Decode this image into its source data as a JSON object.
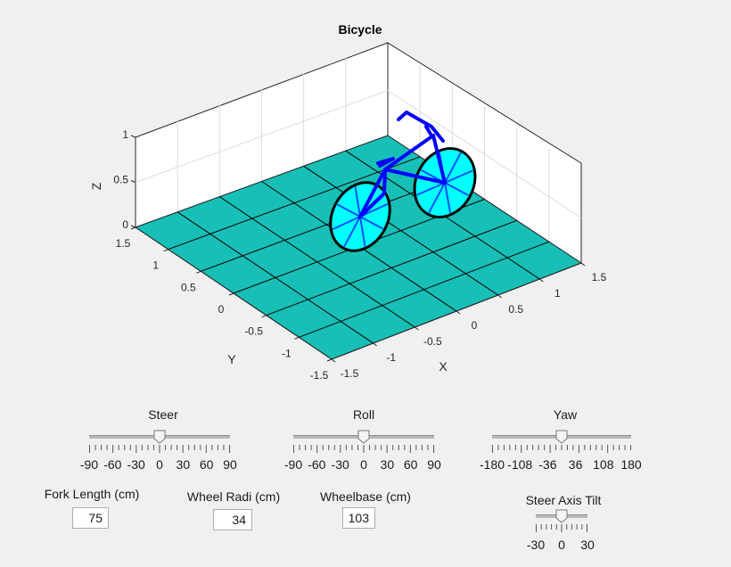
{
  "plot": {
    "title": "Bicycle",
    "xlabel": "X",
    "ylabel": "Y",
    "zlabel": "Z",
    "x_ticks": [
      "-1.5",
      "-1",
      "-0.5",
      "0",
      "0.5",
      "1",
      "1.5"
    ],
    "y_ticks": [
      "-1.5",
      "-1",
      "-0.5",
      "0",
      "0.5",
      "1",
      "1.5"
    ],
    "z_ticks": [
      "0",
      "0.5",
      "1"
    ],
    "ground_color": "#17bfb6",
    "frame_color": "#0000ff",
    "wheel_color": "#00ffff"
  },
  "controls": {
    "steer": {
      "label": "Steer",
      "min": -90,
      "max": 90,
      "value": 0,
      "tick_labels": [
        "-90",
        "-60",
        "-30",
        "0",
        "30",
        "60",
        "90"
      ]
    },
    "roll": {
      "label": "Roll",
      "min": -90,
      "max": 90,
      "value": 0,
      "tick_labels": [
        "-90",
        "-60",
        "-30",
        "0",
        "30",
        "60",
        "90"
      ]
    },
    "yaw": {
      "label": "Yaw",
      "min": -180,
      "max": 180,
      "value": 0,
      "tick_labels": [
        "-180",
        "-108",
        "-36",
        "36",
        "108",
        "180"
      ]
    },
    "steer_axis_tilt": {
      "label": "Steer Axis Tilt",
      "min": -30,
      "max": 30,
      "value": 0,
      "tick_labels": [
        "-30",
        "0",
        "30"
      ]
    },
    "fork_length": {
      "label": "Fork Length (cm)",
      "value": "75"
    },
    "wheel_radius": {
      "label": "Wheel Radi (cm)",
      "value": "34"
    },
    "wheelbase": {
      "label": "Wheelbase (cm)",
      "value": "103"
    }
  }
}
